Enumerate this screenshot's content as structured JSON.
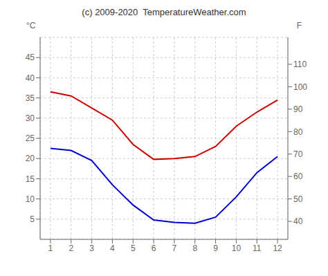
{
  "chart_data": {
    "type": "line",
    "title": "(c) 2009-2020  TemperatureWeather.com",
    "x": [
      1,
      2,
      3,
      4,
      5,
      6,
      7,
      8,
      9,
      10,
      11,
      12
    ],
    "series": [
      {
        "color": "#cc0000",
        "values": [
          36.5,
          35.5,
          32.5,
          29.5,
          23.5,
          19.8,
          20.0,
          20.5,
          23.0,
          28.0,
          31.5,
          34.5
        ]
      },
      {
        "color": "#0000cc",
        "values": [
          22.5,
          22.0,
          19.5,
          13.5,
          8.5,
          4.8,
          4.2,
          4.0,
          5.5,
          10.5,
          16.5,
          20.5
        ]
      }
    ],
    "xlim": [
      0.5,
      12.5
    ],
    "xticks": [
      1,
      2,
      3,
      4,
      5,
      6,
      7,
      8,
      9,
      10,
      11,
      12
    ],
    "ylim": [
      0,
      50
    ],
    "yticks": [
      5,
      10,
      15,
      20,
      25,
      30,
      35,
      40,
      45
    ],
    "y2lim": [
      32,
      122
    ],
    "y2ticks": [
      40,
      50,
      60,
      70,
      80,
      90,
      100,
      110
    ],
    "ylabel": "°C",
    "y2label": "F",
    "grid": true
  }
}
